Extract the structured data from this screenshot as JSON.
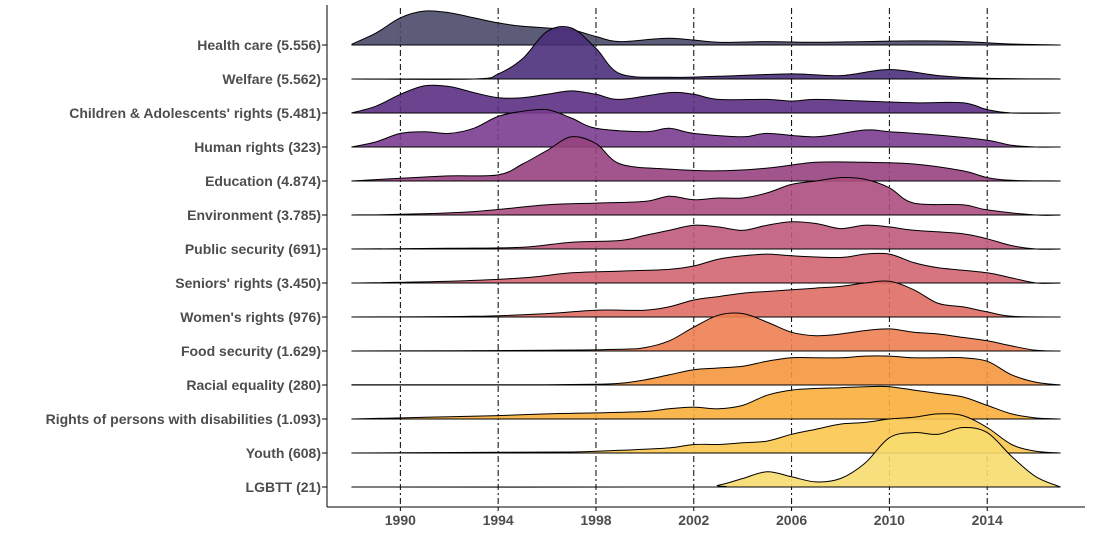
{
  "chart_data": {
    "type": "ridgeline",
    "title": "",
    "xlabel": "",
    "ylabel": "",
    "xlim": [
      1987,
      2018
    ],
    "x_ticks": [
      1990,
      1994,
      1998,
      2002,
      2006,
      2010,
      2014
    ],
    "vertical_reference_lines": [
      1990,
      1994,
      1998,
      2002,
      2006,
      2010,
      2014
    ],
    "grid": false,
    "legend": "none",
    "series": [
      {
        "name": "Health care (5.556)",
        "color": "#4a4a6a",
        "points": [
          [
            1988,
            0.02
          ],
          [
            1989,
            0.35
          ],
          [
            1990,
            0.8
          ],
          [
            1991,
            1.0
          ],
          [
            1992,
            0.95
          ],
          [
            1993,
            0.8
          ],
          [
            1994,
            0.65
          ],
          [
            1995,
            0.55
          ],
          [
            1996,
            0.5
          ],
          [
            1997,
            0.45
          ],
          [
            1998,
            0.25
          ],
          [
            1999,
            0.1
          ],
          [
            2001,
            0.2
          ],
          [
            2003,
            0.08
          ],
          [
            2005,
            0.1
          ],
          [
            2007,
            0.08
          ],
          [
            2009,
            0.1
          ],
          [
            2011,
            0.12
          ],
          [
            2013,
            0.1
          ],
          [
            2015,
            0.03
          ],
          [
            2017,
            0.0
          ]
        ]
      },
      {
        "name": "Welfare (5.562)",
        "color": "#4b2f7a",
        "points": [
          [
            1988,
            0.0
          ],
          [
            1993,
            0.0
          ],
          [
            1994,
            0.15
          ],
          [
            1995,
            0.6
          ],
          [
            1996,
            1.4
          ],
          [
            1997,
            1.5
          ],
          [
            1998,
            0.9
          ],
          [
            1999,
            0.15
          ],
          [
            2001,
            0.05
          ],
          [
            2003,
            0.08
          ],
          [
            2006,
            0.15
          ],
          [
            2008,
            0.1
          ],
          [
            2010,
            0.28
          ],
          [
            2012,
            0.1
          ],
          [
            2014,
            0.02
          ],
          [
            2017,
            0.0
          ]
        ]
      },
      {
        "name": "Children & Adolescents' rights (5.481)",
        "color": "#5c2f82",
        "points": [
          [
            1988,
            0.0
          ],
          [
            1989,
            0.2
          ],
          [
            1990,
            0.55
          ],
          [
            1991,
            0.8
          ],
          [
            1992,
            0.78
          ],
          [
            1993,
            0.6
          ],
          [
            1994,
            0.45
          ],
          [
            1995,
            0.45
          ],
          [
            1996,
            0.55
          ],
          [
            1997,
            0.65
          ],
          [
            1998,
            0.55
          ],
          [
            1999,
            0.4
          ],
          [
            2001,
            0.6
          ],
          [
            2002,
            0.55
          ],
          [
            2003,
            0.4
          ],
          [
            2005,
            0.4
          ],
          [
            2006,
            0.35
          ],
          [
            2007,
            0.4
          ],
          [
            2009,
            0.35
          ],
          [
            2011,
            0.3
          ],
          [
            2013,
            0.3
          ],
          [
            2014,
            0.1
          ],
          [
            2015,
            0.0
          ],
          [
            2017,
            0.0
          ]
        ]
      },
      {
        "name": "Human rights (323)",
        "color": "#7b3c90",
        "points": [
          [
            1988,
            0.0
          ],
          [
            1989,
            0.15
          ],
          [
            1990,
            0.4
          ],
          [
            1991,
            0.45
          ],
          [
            1992,
            0.4
          ],
          [
            1993,
            0.55
          ],
          [
            1994,
            0.9
          ],
          [
            1995,
            1.05
          ],
          [
            1996,
            1.1
          ],
          [
            1997,
            0.85
          ],
          [
            1998,
            0.55
          ],
          [
            2000,
            0.45
          ],
          [
            2001,
            0.55
          ],
          [
            2002,
            0.4
          ],
          [
            2004,
            0.3
          ],
          [
            2005,
            0.4
          ],
          [
            2007,
            0.3
          ],
          [
            2009,
            0.5
          ],
          [
            2010,
            0.45
          ],
          [
            2012,
            0.35
          ],
          [
            2014,
            0.2
          ],
          [
            2015,
            0.05
          ],
          [
            2016,
            0.0
          ],
          [
            2017,
            0.0
          ]
        ]
      },
      {
        "name": "Education (4.874)",
        "color": "#98427f",
        "points": [
          [
            1988,
            0.0
          ],
          [
            1990,
            0.08
          ],
          [
            1992,
            0.15
          ],
          [
            1994,
            0.18
          ],
          [
            1995,
            0.5
          ],
          [
            1996,
            0.9
          ],
          [
            1997,
            1.3
          ],
          [
            1998,
            1.1
          ],
          [
            1999,
            0.5
          ],
          [
            2001,
            0.35
          ],
          [
            2003,
            0.3
          ],
          [
            2005,
            0.38
          ],
          [
            2007,
            0.55
          ],
          [
            2009,
            0.55
          ],
          [
            2011,
            0.5
          ],
          [
            2013,
            0.3
          ],
          [
            2014,
            0.1
          ],
          [
            2015,
            0.02
          ],
          [
            2017,
            0.0
          ]
        ]
      },
      {
        "name": "Environment (3.785)",
        "color": "#ad4e80",
        "points": [
          [
            1988,
            0.0
          ],
          [
            1990,
            0.02
          ],
          [
            1993,
            0.1
          ],
          [
            1996,
            0.3
          ],
          [
            1998,
            0.35
          ],
          [
            2000,
            0.4
          ],
          [
            2001,
            0.55
          ],
          [
            2002,
            0.45
          ],
          [
            2003,
            0.5
          ],
          [
            2004,
            0.5
          ],
          [
            2005,
            0.65
          ],
          [
            2006,
            0.9
          ],
          [
            2007,
            1.0
          ],
          [
            2008,
            1.1
          ],
          [
            2009,
            1.05
          ],
          [
            2010,
            0.8
          ],
          [
            2011,
            0.35
          ],
          [
            2013,
            0.3
          ],
          [
            2014,
            0.15
          ],
          [
            2016,
            0.0
          ],
          [
            2017,
            0.0
          ]
        ]
      },
      {
        "name": "Public security (691)",
        "color": "#bf5a7c",
        "points": [
          [
            1988,
            0.0
          ],
          [
            1992,
            0.02
          ],
          [
            1995,
            0.05
          ],
          [
            1997,
            0.2
          ],
          [
            1999,
            0.25
          ],
          [
            2000,
            0.4
          ],
          [
            2001,
            0.55
          ],
          [
            2002,
            0.7
          ],
          [
            2003,
            0.65
          ],
          [
            2004,
            0.55
          ],
          [
            2005,
            0.7
          ],
          [
            2006,
            0.8
          ],
          [
            2007,
            0.75
          ],
          [
            2008,
            0.6
          ],
          [
            2009,
            0.7
          ],
          [
            2010,
            0.65
          ],
          [
            2011,
            0.55
          ],
          [
            2013,
            0.45
          ],
          [
            2014,
            0.3
          ],
          [
            2015,
            0.1
          ],
          [
            2016,
            0.0
          ],
          [
            2017,
            0.0
          ]
        ]
      },
      {
        "name": "Seniors' rights (3.450)",
        "color": "#d26571",
        "points": [
          [
            1988,
            0.0
          ],
          [
            1992,
            0.05
          ],
          [
            1995,
            0.15
          ],
          [
            1997,
            0.3
          ],
          [
            1999,
            0.35
          ],
          [
            2001,
            0.4
          ],
          [
            2002,
            0.5
          ],
          [
            2003,
            0.7
          ],
          [
            2004,
            0.8
          ],
          [
            2005,
            0.85
          ],
          [
            2006,
            0.8
          ],
          [
            2008,
            0.75
          ],
          [
            2009,
            0.85
          ],
          [
            2010,
            0.85
          ],
          [
            2011,
            0.6
          ],
          [
            2012,
            0.45
          ],
          [
            2014,
            0.3
          ],
          [
            2015,
            0.15
          ],
          [
            2016,
            0.0
          ],
          [
            2017,
            0.0
          ]
        ]
      },
      {
        "name": "Women's rights (976)",
        "color": "#e06d66",
        "points": [
          [
            1988,
            0.0
          ],
          [
            1993,
            0.02
          ],
          [
            1996,
            0.1
          ],
          [
            1998,
            0.2
          ],
          [
            2000,
            0.2
          ],
          [
            2001,
            0.3
          ],
          [
            2002,
            0.5
          ],
          [
            2003,
            0.6
          ],
          [
            2004,
            0.7
          ],
          [
            2005,
            0.75
          ],
          [
            2006,
            0.8
          ],
          [
            2007,
            0.85
          ],
          [
            2008,
            0.9
          ],
          [
            2009,
            1.0
          ],
          [
            2010,
            1.05
          ],
          [
            2011,
            0.8
          ],
          [
            2012,
            0.4
          ],
          [
            2013,
            0.3
          ],
          [
            2014,
            0.15
          ],
          [
            2015,
            0.02
          ],
          [
            2017,
            0.0
          ]
        ]
      },
      {
        "name": "Food security (1.629)",
        "color": "#ee7f52",
        "points": [
          [
            1988,
            0.0
          ],
          [
            1996,
            0.02
          ],
          [
            1999,
            0.05
          ],
          [
            2000,
            0.1
          ],
          [
            2001,
            0.3
          ],
          [
            2002,
            0.7
          ],
          [
            2003,
            1.05
          ],
          [
            2004,
            1.1
          ],
          [
            2005,
            0.85
          ],
          [
            2006,
            0.55
          ],
          [
            2007,
            0.45
          ],
          [
            2008,
            0.5
          ],
          [
            2009,
            0.6
          ],
          [
            2010,
            0.65
          ],
          [
            2011,
            0.55
          ],
          [
            2012,
            0.5
          ],
          [
            2013,
            0.4
          ],
          [
            2014,
            0.3
          ],
          [
            2015,
            0.15
          ],
          [
            2016,
            0.02
          ],
          [
            2017,
            0.0
          ]
        ]
      },
      {
        "name": "Racial equality (280)",
        "color": "#f5963f",
        "points": [
          [
            1988,
            0.01
          ],
          [
            1993,
            0.01
          ],
          [
            1996,
            0.01
          ],
          [
            1998,
            0.02
          ],
          [
            1999,
            0.05
          ],
          [
            2000,
            0.15
          ],
          [
            2001,
            0.3
          ],
          [
            2002,
            0.45
          ],
          [
            2003,
            0.5
          ],
          [
            2004,
            0.55
          ],
          [
            2005,
            0.7
          ],
          [
            2006,
            0.8
          ],
          [
            2007,
            0.8
          ],
          [
            2008,
            0.8
          ],
          [
            2009,
            0.85
          ],
          [
            2010,
            0.85
          ],
          [
            2011,
            0.8
          ],
          [
            2012,
            0.8
          ],
          [
            2013,
            0.8
          ],
          [
            2014,
            0.7
          ],
          [
            2015,
            0.3
          ],
          [
            2016,
            0.08
          ],
          [
            2017,
            0.0
          ]
        ]
      },
      {
        "name": "Rights of persons with disabilities (1.093)",
        "color": "#f9af3c",
        "points": [
          [
            1988,
            0.0
          ],
          [
            1991,
            0.05
          ],
          [
            1994,
            0.1
          ],
          [
            1996,
            0.15
          ],
          [
            1998,
            0.18
          ],
          [
            2000,
            0.22
          ],
          [
            2001,
            0.3
          ],
          [
            2002,
            0.35
          ],
          [
            2003,
            0.3
          ],
          [
            2004,
            0.4
          ],
          [
            2005,
            0.7
          ],
          [
            2006,
            0.85
          ],
          [
            2007,
            0.9
          ],
          [
            2008,
            0.92
          ],
          [
            2009,
            0.95
          ],
          [
            2010,
            0.95
          ],
          [
            2011,
            0.85
          ],
          [
            2012,
            0.75
          ],
          [
            2013,
            0.65
          ],
          [
            2014,
            0.4
          ],
          [
            2015,
            0.15
          ],
          [
            2016,
            0.03
          ],
          [
            2017,
            0.0
          ]
        ]
      },
      {
        "name": "Youth (608)",
        "color": "#fbc850",
        "points": [
          [
            1988,
            0.0
          ],
          [
            1990,
            0.01
          ],
          [
            1994,
            0.02
          ],
          [
            1997,
            0.03
          ],
          [
            1998,
            0.05
          ],
          [
            1999,
            0.08
          ],
          [
            2001,
            0.15
          ],
          [
            2002,
            0.25
          ],
          [
            2003,
            0.25
          ],
          [
            2004,
            0.3
          ],
          [
            2005,
            0.35
          ],
          [
            2006,
            0.55
          ],
          [
            2007,
            0.7
          ],
          [
            2008,
            0.85
          ],
          [
            2009,
            0.9
          ],
          [
            2010,
            1.0
          ],
          [
            2011,
            1.05
          ],
          [
            2012,
            1.15
          ],
          [
            2013,
            1.1
          ],
          [
            2014,
            0.75
          ],
          [
            2015,
            0.25
          ],
          [
            2016,
            0.05
          ],
          [
            2017,
            0.0
          ]
        ]
      },
      {
        "name": "LGBTT (21)",
        "color": "#f7dc6f",
        "points": [
          [
            1988,
            0.0
          ],
          [
            2002,
            0.0
          ],
          [
            2003,
            0.05
          ],
          [
            2004,
            0.25
          ],
          [
            2005,
            0.45
          ],
          [
            2006,
            0.3
          ],
          [
            2007,
            0.15
          ],
          [
            2008,
            0.25
          ],
          [
            2009,
            0.7
          ],
          [
            2010,
            1.45
          ],
          [
            2011,
            1.6
          ],
          [
            2012,
            1.55
          ],
          [
            2013,
            1.75
          ],
          [
            2014,
            1.6
          ],
          [
            2015,
            0.9
          ],
          [
            2016,
            0.3
          ],
          [
            2017,
            0.0
          ]
        ]
      }
    ]
  }
}
